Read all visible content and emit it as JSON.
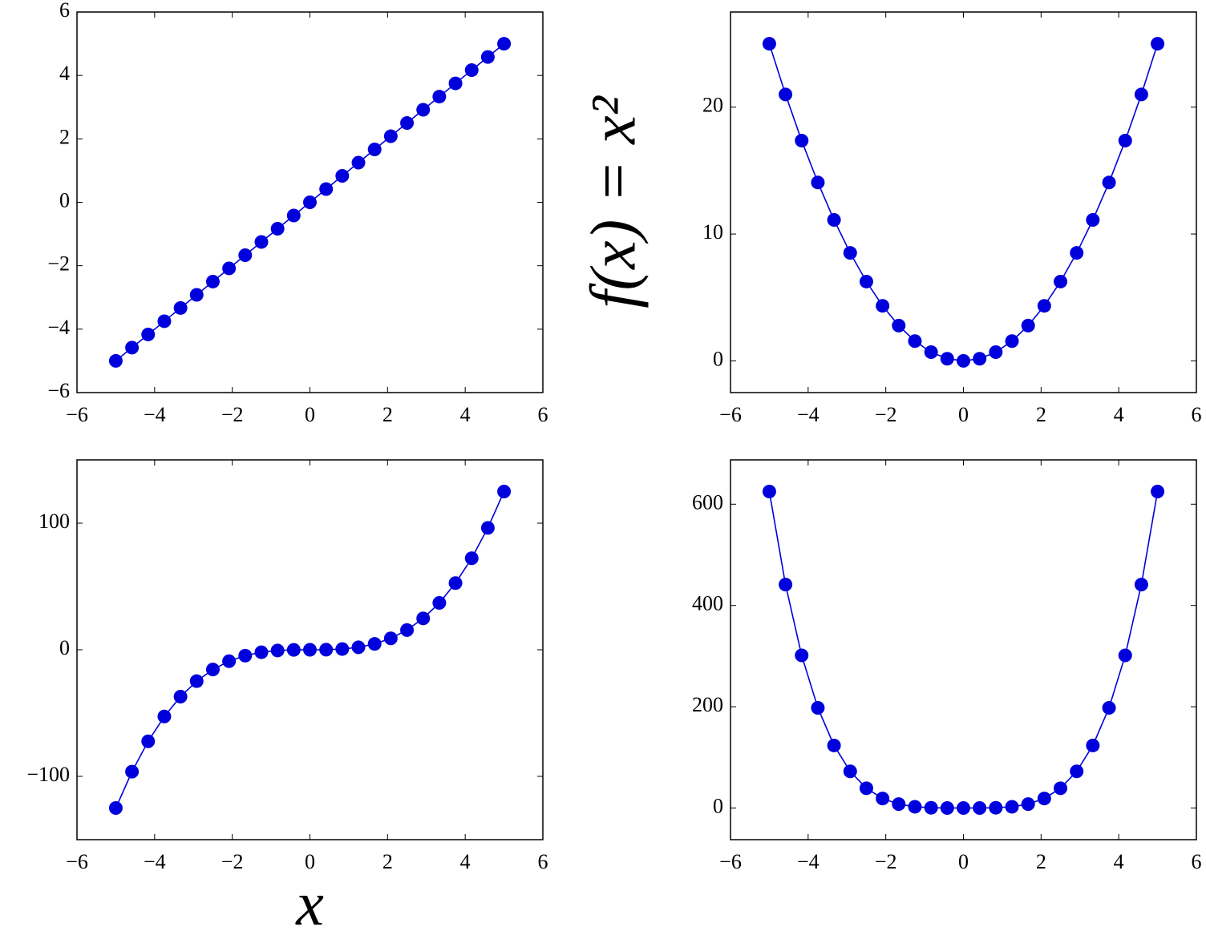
{
  "chart_data": [
    {
      "type": "line",
      "color": "#0000dc",
      "x": [
        -5,
        -4.583,
        -4.167,
        -3.75,
        -3.333,
        -2.917,
        -2.5,
        -2.083,
        -1.667,
        -1.25,
        -0.833,
        -0.417,
        0,
        0.417,
        0.833,
        1.25,
        1.667,
        2.083,
        2.5,
        2.917,
        3.333,
        3.75,
        4.167,
        4.583,
        5
      ],
      "values": [
        -5,
        -4.583,
        -4.167,
        -3.75,
        -3.333,
        -2.917,
        -2.5,
        -2.083,
        -1.667,
        -1.25,
        -0.833,
        -0.417,
        0,
        0.417,
        0.833,
        1.25,
        1.667,
        2.083,
        2.5,
        2.917,
        3.333,
        3.75,
        4.167,
        4.583,
        5
      ],
      "xlim": [
        -6,
        6
      ],
      "ylim": [
        -6,
        6
      ],
      "xticks": [
        {
          "value": -6,
          "label": "−6"
        },
        {
          "value": -4,
          "label": "−4"
        },
        {
          "value": -2,
          "label": "−2"
        },
        0,
        2,
        4,
        6
      ],
      "yticks": [
        {
          "value": -6,
          "label": "−6"
        },
        {
          "value": -4,
          "label": "−4"
        },
        {
          "value": -2,
          "label": "−2"
        },
        0,
        2,
        4,
        6
      ]
    },
    {
      "type": "line",
      "color": "#0000dc",
      "ylabel": "f(x) = x²",
      "x": [
        -5,
        -4.583,
        -4.167,
        -3.75,
        -3.333,
        -2.917,
        -2.5,
        -2.083,
        -1.667,
        -1.25,
        -0.833,
        -0.417,
        0,
        0.417,
        0.833,
        1.25,
        1.667,
        2.083,
        2.5,
        2.917,
        3.333,
        3.75,
        4.167,
        4.583,
        5
      ],
      "values": [
        25,
        21.0,
        17.36,
        14.06,
        11.11,
        8.51,
        6.25,
        4.34,
        2.78,
        1.56,
        0.69,
        0.17,
        0,
        0.17,
        0.69,
        1.56,
        2.78,
        4.34,
        6.25,
        8.51,
        11.11,
        14.06,
        17.36,
        21.0,
        25
      ],
      "xlim": [
        -6,
        6
      ],
      "ylim": [
        -2.5,
        27.5
      ],
      "xticks": [
        {
          "value": -6,
          "label": "−6"
        },
        {
          "value": -4,
          "label": "−4"
        },
        {
          "value": -2,
          "label": "−2"
        },
        0,
        2,
        4,
        6
      ],
      "yticks": [
        0,
        10,
        20
      ]
    },
    {
      "type": "line",
      "color": "#0000dc",
      "xlabel": "x",
      "x": [
        -5,
        -4.583,
        -4.167,
        -3.75,
        -3.333,
        -2.917,
        -2.5,
        -2.083,
        -1.667,
        -1.25,
        -0.833,
        -0.417,
        0,
        0.417,
        0.833,
        1.25,
        1.667,
        2.083,
        2.5,
        2.917,
        3.333,
        3.75,
        4.167,
        4.583,
        5
      ],
      "values": [
        -125,
        -96.3,
        -72.3,
        -52.7,
        -37.0,
        -24.8,
        -15.6,
        -9.04,
        -4.63,
        -1.95,
        -0.58,
        -0.07,
        0,
        0.07,
        0.58,
        1.95,
        4.63,
        9.04,
        15.6,
        24.8,
        37.0,
        52.7,
        72.3,
        96.3,
        125
      ],
      "xlim": [
        -6,
        6
      ],
      "ylim": [
        -150,
        150
      ],
      "xticks": [
        {
          "value": -6,
          "label": "−6"
        },
        {
          "value": -4,
          "label": "−4"
        },
        {
          "value": -2,
          "label": "−2"
        },
        0,
        2,
        4,
        6
      ],
      "yticks": [
        {
          "value": -100,
          "label": "−100"
        },
        0,
        100
      ]
    },
    {
      "type": "line",
      "color": "#0000dc",
      "x": [
        -5,
        -4.583,
        -4.167,
        -3.75,
        -3.333,
        -2.917,
        -2.5,
        -2.083,
        -1.667,
        -1.25,
        -0.833,
        -0.417,
        0,
        0.417,
        0.833,
        1.25,
        1.667,
        2.083,
        2.5,
        2.917,
        3.333,
        3.75,
        4.167,
        4.583,
        5
      ],
      "values": [
        625,
        441.3,
        301.4,
        197.8,
        123.5,
        72.4,
        39.06,
        18.84,
        7.72,
        2.44,
        0.48,
        0.03,
        0,
        0.03,
        0.48,
        2.44,
        7.72,
        18.84,
        39.06,
        72.4,
        123.5,
        197.8,
        301.4,
        441.3,
        625
      ],
      "xlim": [
        -6,
        6
      ],
      "ylim": [
        -62.5,
        687.5
      ],
      "xticks": [
        {
          "value": -6,
          "label": "−6"
        },
        {
          "value": -4,
          "label": "−4"
        },
        {
          "value": -2,
          "label": "−2"
        },
        0,
        2,
        4,
        6
      ],
      "yticks": [
        0,
        200,
        400,
        600
      ]
    }
  ]
}
